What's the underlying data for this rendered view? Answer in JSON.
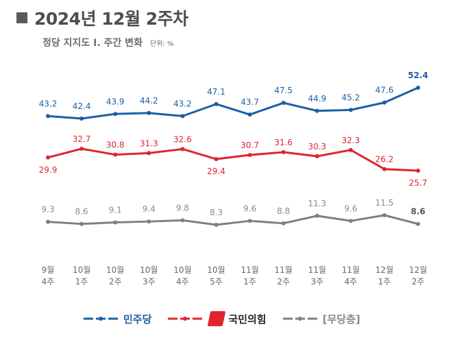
{
  "header": {
    "title": "2024년 12월 2주차",
    "subtitle": "정당 지지도 Ⅰ. 주간 변화",
    "unit": "단위: %"
  },
  "chart_data": {
    "type": "line",
    "categories": [
      [
        "9월",
        "4주"
      ],
      [
        "10월",
        "1주"
      ],
      [
        "10월",
        "2주"
      ],
      [
        "10월",
        "3주"
      ],
      [
        "10월",
        "4주"
      ],
      [
        "10월",
        "5주"
      ],
      [
        "11월",
        "1주"
      ],
      [
        "11월",
        "2주"
      ],
      [
        "11월",
        "3주"
      ],
      [
        "11월",
        "4주"
      ],
      [
        "12월",
        "1주"
      ],
      [
        "12월",
        "2주"
      ]
    ],
    "series": [
      {
        "name": "민주당",
        "color": "#1a5fa5",
        "values": [
          43.2,
          42.4,
          43.9,
          44.2,
          43.2,
          47.1,
          43.7,
          47.5,
          44.9,
          45.2,
          47.6,
          52.4
        ]
      },
      {
        "name": "국민의힘",
        "color": "#e0242f",
        "values": [
          29.9,
          32.7,
          30.8,
          31.3,
          32.6,
          29.4,
          30.7,
          31.6,
          30.3,
          32.3,
          26.2,
          25.7
        ]
      },
      {
        "name": "[무당층]",
        "color": "#7f7f7f",
        "values": [
          9.3,
          8.6,
          9.1,
          9.4,
          9.8,
          8.3,
          9.6,
          8.8,
          11.3,
          9.6,
          11.5,
          8.6
        ]
      }
    ],
    "legend_position": "bottom",
    "grid": false
  }
}
